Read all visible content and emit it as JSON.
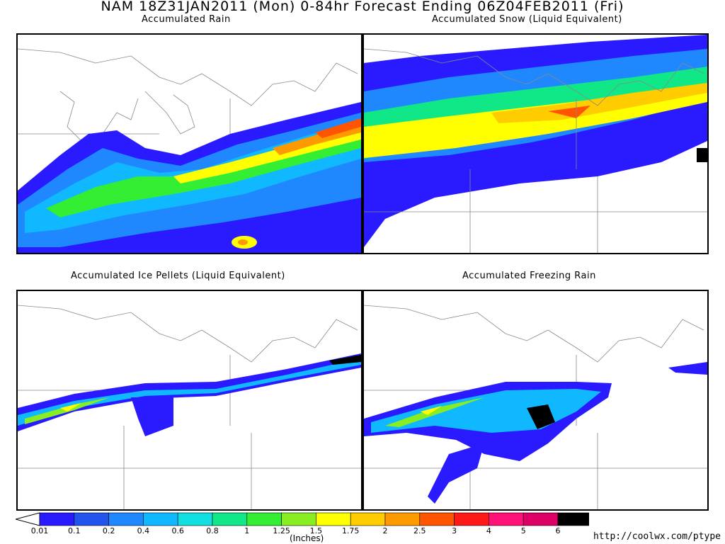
{
  "header": {
    "title": "NAM 18Z31JAN2011 (Mon) 0-84hr Forecast Ending 06Z04FEB2011 (Fri)"
  },
  "panels": [
    {
      "title": "Accumulated Rain"
    },
    {
      "title": "Accumulated Snow (Liquid Equivalent)"
    },
    {
      "title": "Accumulated Ice Pellets (Liquid Equivalent)"
    },
    {
      "title": "Accumulated Freezing Rain"
    }
  ],
  "legend": {
    "labels": [
      "0.01",
      "0.1",
      "0.2",
      "0.4",
      "0.6",
      "0.8",
      "1",
      "1.25",
      "1.5",
      "1.75",
      "2",
      "2.5",
      "3",
      "4",
      "5",
      "6"
    ],
    "colors": [
      "#2a1aff",
      "#2255ee",
      "#1f88ff",
      "#10b8ff",
      "#10e0e0",
      "#10e88a",
      "#33ee33",
      "#88ee22",
      "#ffff00",
      "#ffcc00",
      "#ff9900",
      "#ff5500",
      "#ff1a1a",
      "#ff1177",
      "#dd0066",
      "#000000"
    ],
    "units": "(Inches)"
  },
  "footer": {
    "url": "http://coolwx.com/ptype"
  }
}
